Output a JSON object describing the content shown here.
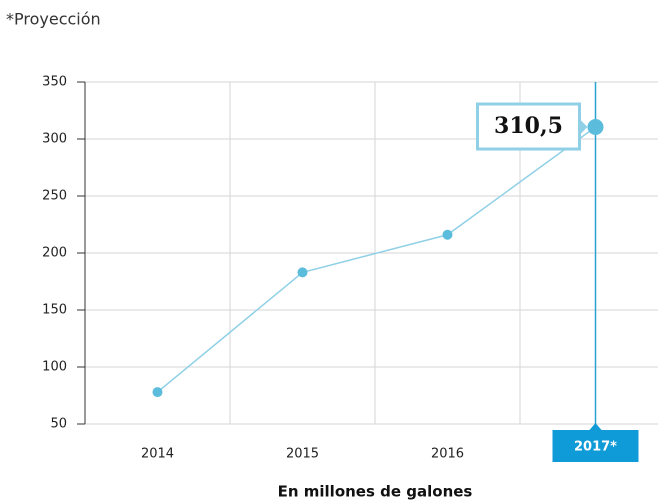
{
  "chart_data": {
    "type": "line",
    "annotation": "*Proyección",
    "x_label": "En millones de galones",
    "categories": [
      "2014",
      "2015",
      "2016",
      "2017*"
    ],
    "series": [
      {
        "color": "#8fd0e6",
        "values": [
          78,
          183,
          216,
          310.5
        ],
        "value_labels": [
          null,
          null,
          null,
          "310,5"
        ]
      }
    ],
    "ylim": [
      50,
      350
    ],
    "yticks": [
      50,
      100,
      150,
      200,
      250,
      300,
      350
    ],
    "grid": true
  }
}
